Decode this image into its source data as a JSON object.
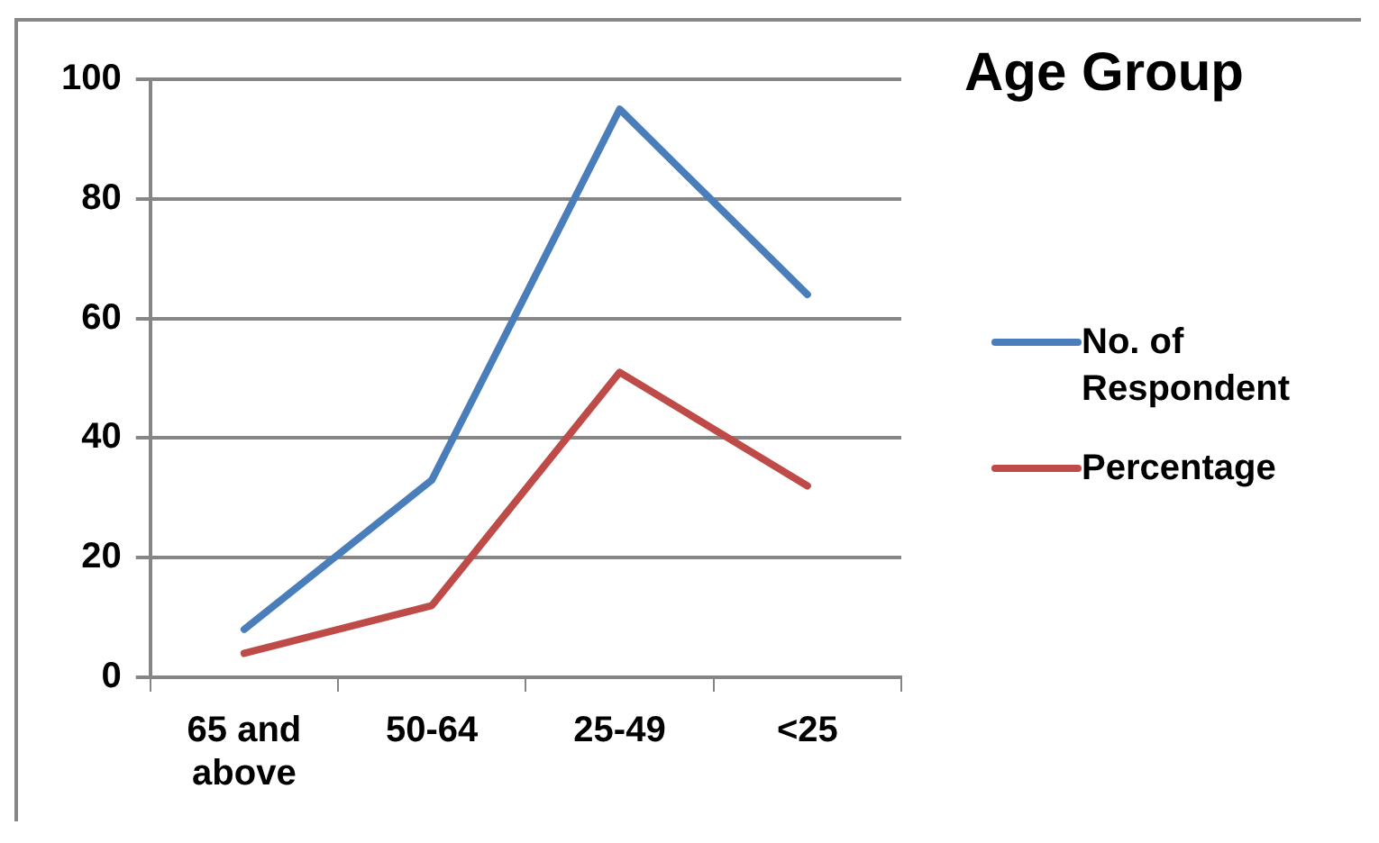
{
  "chart_data": {
    "type": "line",
    "title": "Age Group",
    "categories": [
      "65 and above",
      "50-64",
      "25-49",
      "<25"
    ],
    "series": [
      {
        "name": "No. of Respondent",
        "color": "#4a7ebb",
        "values": [
          8,
          33,
          95,
          64
        ]
      },
      {
        "name": "Percentage",
        "color": "#be4b48",
        "values": [
          4,
          12,
          51,
          32
        ]
      }
    ],
    "ylim": [
      0,
      100
    ],
    "yticks": [
      0,
      20,
      40,
      60,
      80,
      100
    ],
    "grid": "y",
    "legend": "right",
    "marker": "none",
    "line_style": "solid"
  }
}
